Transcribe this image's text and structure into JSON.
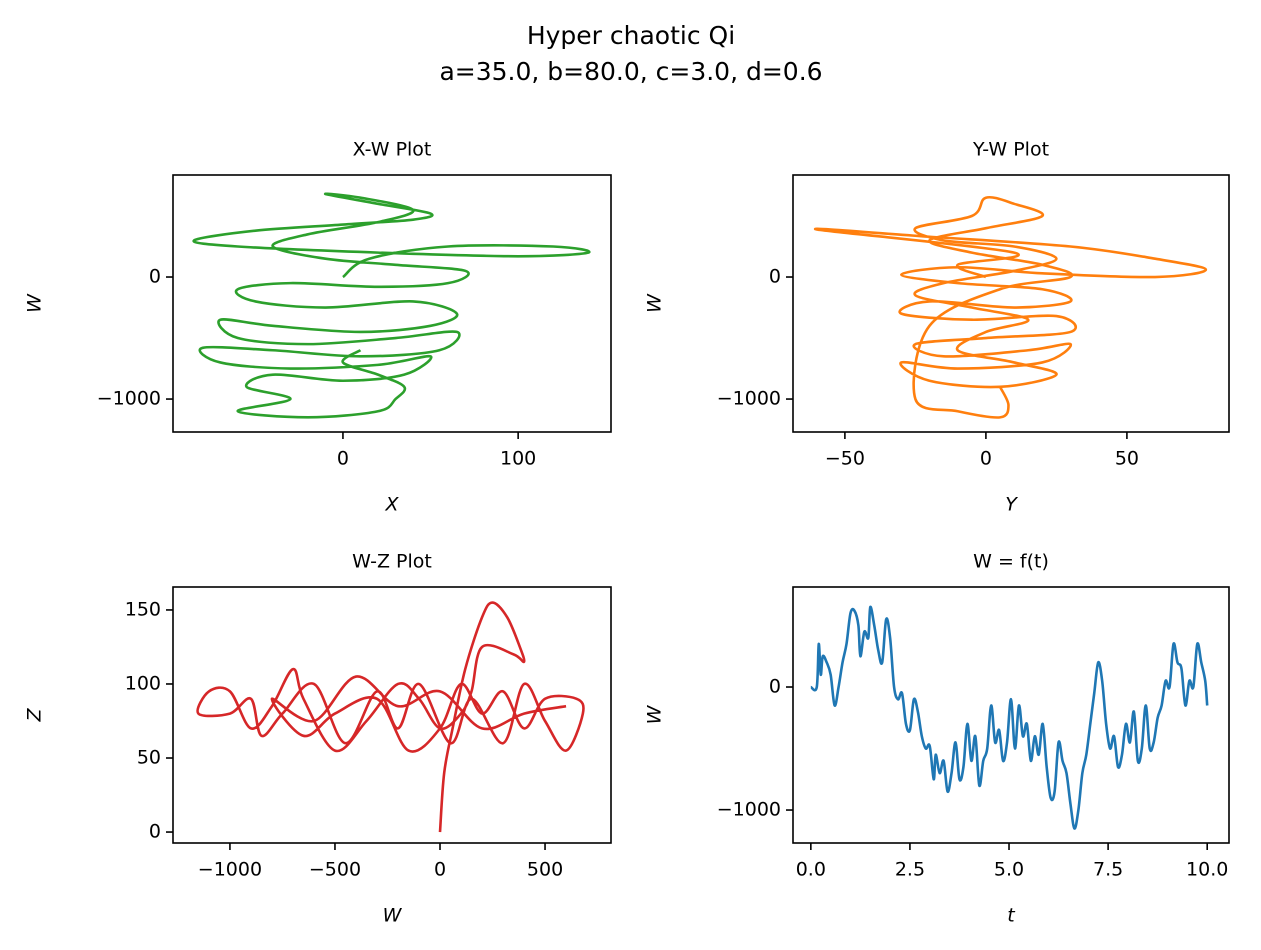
{
  "title": "Hyper chaotic Qi",
  "subtitle": "a=35.0, b=80.0, c=3.0, d=0.6",
  "chart_data": [
    {
      "type": "line",
      "title": "X-W Plot",
      "xlabel": "X",
      "ylabel": "W",
      "color": "#2ca02c",
      "xlim": [
        -97,
        153
      ],
      "ylim": [
        -1270,
        836
      ],
      "xticks": [
        0,
        100
      ],
      "yticks": [
        {
          "value": -1000,
          "label": "−1000"
        },
        0
      ],
      "x": [
        0,
        15,
        60,
        120,
        140,
        100,
        20,
        -60,
        -85,
        -50,
        0,
        40,
        50,
        20,
        -10,
        10,
        40,
        20,
        -20,
        -40,
        -10,
        30,
        70,
        60,
        20,
        -30,
        -60,
        -50,
        -10,
        40,
        65,
        50,
        10,
        -40,
        -70,
        -60,
        -20,
        30,
        65,
        55,
        10,
        -40,
        -80,
        -70,
        -30,
        20,
        50,
        35,
        0,
        -40,
        -55,
        -30,
        -60,
        -20,
        20,
        30,
        35,
        20,
        0,
        10
      ],
      "values": [
        0,
        150,
        250,
        250,
        200,
        170,
        200,
        250,
        300,
        380,
        430,
        470,
        520,
        600,
        680,
        650,
        550,
        450,
        350,
        250,
        150,
        100,
        50,
        -50,
        -80,
        -50,
        -100,
        -200,
        -250,
        -200,
        -300,
        -400,
        -450,
        -400,
        -350,
        -500,
        -550,
        -500,
        -450,
        -600,
        -650,
        -600,
        -580,
        -700,
        -750,
        -720,
        -650,
        -800,
        -850,
        -800,
        -900,
        -1000,
        -1100,
        -1150,
        -1100,
        -1000,
        -900,
        -800,
        -700,
        -600
      ]
    },
    {
      "type": "line",
      "title": "Y-W Plot",
      "xlabel": "Y",
      "ylabel": "W",
      "color": "#ff7f0e",
      "xlim": [
        -68.4,
        86.2
      ],
      "ylim": [
        -1270,
        836
      ],
      "xticks": [
        {
          "value": -50,
          "label": "−50"
        },
        0,
        50
      ],
      "yticks": [
        {
          "value": -1000,
          "label": "−1000"
        },
        0
      ],
      "x": [
        0,
        -10,
        10,
        -60,
        -20,
        30,
        60,
        78,
        60,
        20,
        -10,
        -30,
        -10,
        20,
        30,
        10,
        -20,
        -30,
        -5,
        25,
        30,
        0,
        -25,
        -15,
        15,
        30,
        20,
        -10,
        -30,
        -20,
        5,
        25,
        10,
        -10,
        0,
        15,
        -5,
        -25,
        -15,
        10,
        25,
        10,
        -15,
        -25,
        -5,
        0,
        10,
        20,
        0,
        -20,
        -5,
        20,
        30,
        5,
        -20,
        -25,
        -10,
        5,
        8,
        5
      ],
      "values": [
        0,
        100,
        200,
        390,
        330,
        250,
        150,
        60,
        0,
        30,
        80,
        20,
        -50,
        -100,
        -200,
        -250,
        -200,
        -300,
        -350,
        -320,
        -450,
        -500,
        -550,
        -650,
        -600,
        -550,
        -700,
        -750,
        -700,
        -850,
        -900,
        -800,
        -700,
        -600,
        -450,
        -350,
        -250,
        -150,
        -50,
        50,
        150,
        250,
        300,
        400,
        500,
        650,
        600,
        500,
        400,
        300,
        200,
        100,
        0,
        -100,
        -400,
        -1000,
        -1100,
        -1150,
        -1050,
        -900
      ]
    },
    {
      "type": "line",
      "title": "W-Z Plot",
      "xlabel": "W",
      "ylabel": "Z",
      "color": "#d62728",
      "xlim": [
        -1271,
        814
      ],
      "ylim": [
        -7.4,
        165.5
      ],
      "xticks": [
        {
          "value": -1000,
          "label": "−1000"
        },
        {
          "value": -500,
          "label": "−500"
        },
        0,
        500
      ],
      "yticks": [
        0,
        50,
        100,
        150
      ],
      "x": [
        0,
        20,
        60,
        120,
        200,
        250,
        320,
        380,
        400,
        350,
        200,
        150,
        100,
        0,
        -100,
        -200,
        -350,
        -500,
        -650,
        -700,
        -800,
        -900,
        -1000,
        -1100,
        -1150,
        -1000,
        -900,
        -850,
        -750,
        -600,
        -450,
        -300,
        -200,
        -100,
        50,
        150,
        300,
        400,
        500,
        600,
        680,
        650,
        500,
        400,
        300,
        200,
        100,
        0,
        -150,
        -300,
        -500,
        -650,
        -800,
        -600,
        -400,
        -200,
        0,
        200,
        400,
        600
      ],
      "values": [
        0,
        40,
        70,
        110,
        145,
        155,
        145,
        125,
        115,
        120,
        125,
        95,
        80,
        70,
        90,
        100,
        75,
        55,
        90,
        110,
        85,
        70,
        95,
        95,
        80,
        80,
        90,
        65,
        80,
        100,
        60,
        95,
        70,
        100,
        60,
        90,
        60,
        100,
        75,
        55,
        80,
        90,
        90,
        70,
        95,
        80,
        100,
        70,
        55,
        90,
        80,
        65,
        90,
        75,
        105,
        85,
        95,
        70,
        80,
        85
      ]
    },
    {
      "type": "line",
      "title": "W = f(t)",
      "xlabel": "t",
      "ylabel": "W",
      "color": "#1f77b4",
      "xlim": [
        -0.45,
        10.55
      ],
      "ylim": [
        -1268,
        813
      ],
      "xticks": [
        {
          "value": 0,
          "label": "0.0"
        },
        2.5,
        {
          "value": 5,
          "label": "5.0"
        },
        7.5,
        {
          "value": 10,
          "label": "10.0"
        }
      ],
      "yticks": [
        {
          "value": -1000,
          "label": "−1000"
        },
        0
      ],
      "x": [
        0,
        0.15,
        0.2,
        0.25,
        0.3,
        0.4,
        0.5,
        0.6,
        0.7,
        0.8,
        0.9,
        1.0,
        1.1,
        1.2,
        1.25,
        1.35,
        1.45,
        1.5,
        1.6,
        1.7,
        1.8,
        1.9,
        2.0,
        2.1,
        2.2,
        2.3,
        2.4,
        2.5,
        2.6,
        2.7,
        2.8,
        2.9,
        3.0,
        3.1,
        3.15,
        3.25,
        3.35,
        3.45,
        3.55,
        3.65,
        3.75,
        3.85,
        3.95,
        4.05,
        4.15,
        4.25,
        4.35,
        4.45,
        4.55,
        4.65,
        4.75,
        4.85,
        4.95,
        5.05,
        5.15,
        5.25,
        5.35,
        5.45,
        5.55,
        5.65,
        5.75,
        5.85,
        5.95,
        6.05,
        6.15,
        6.25,
        6.35,
        6.45,
        6.55,
        6.65,
        6.75,
        6.85,
        6.95,
        7.05,
        7.15,
        7.25,
        7.35,
        7.45,
        7.55,
        7.65,
        7.75,
        7.85,
        7.95,
        8.05,
        8.15,
        8.25,
        8.35,
        8.45,
        8.55,
        8.65,
        8.75,
        8.85,
        8.95,
        9.05,
        9.15,
        9.25,
        9.35,
        9.45,
        9.55,
        9.65,
        9.75,
        9.85,
        9.95,
        10.0
      ],
      "values": [
        0,
        0,
        350,
        100,
        250,
        200,
        100,
        -150,
        0,
        200,
        350,
        600,
        620,
        500,
        250,
        450,
        400,
        650,
        500,
        300,
        200,
        550,
        400,
        0,
        -100,
        -50,
        -300,
        -350,
        -100,
        -200,
        -400,
        -500,
        -480,
        -750,
        -550,
        -700,
        -600,
        -850,
        -700,
        -450,
        -750,
        -650,
        -300,
        -600,
        -400,
        -800,
        -600,
        -500,
        -150,
        -450,
        -350,
        -600,
        -450,
        -100,
        -500,
        -150,
        -400,
        -300,
        -600,
        -400,
        -550,
        -300,
        -650,
        -900,
        -850,
        -450,
        -600,
        -700,
        -950,
        -1150,
        -1000,
        -700,
        -550,
        -300,
        -50,
        200,
        50,
        -300,
        -500,
        -400,
        -650,
        -550,
        -300,
        -450,
        -200,
        -600,
        -500,
        -150,
        -500,
        -450,
        -250,
        -150,
        50,
        0,
        350,
        200,
        150,
        -150,
        50,
        0,
        350,
        200,
        50,
        -150
      ]
    }
  ]
}
